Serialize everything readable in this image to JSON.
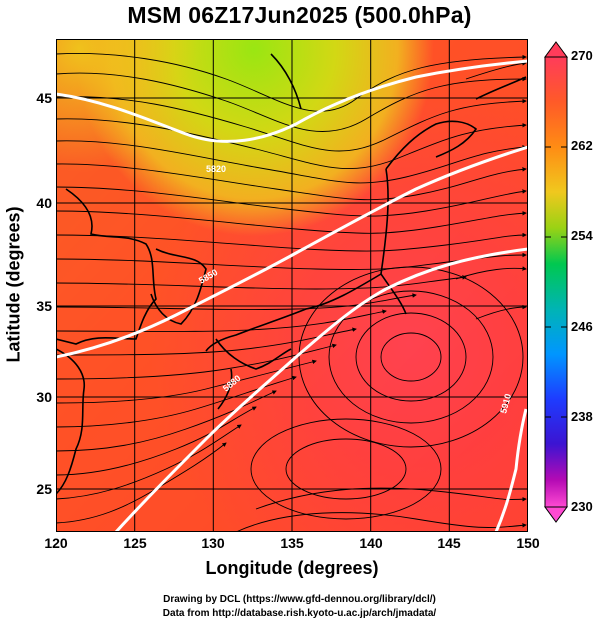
{
  "title": "MSM 06Z17Jun2025 (500.0hPa)",
  "x_axis": {
    "label": "Longitude (degrees)",
    "ticks": [
      "120",
      "125",
      "130",
      "135",
      "140",
      "145",
      "150"
    ]
  },
  "y_axis": {
    "label": "Latitude  (degrees)",
    "ticks": [
      "45",
      "40",
      "35",
      "30",
      "25"
    ]
  },
  "colorbar": {
    "labels": [
      "270",
      "262",
      "254",
      "246",
      "238",
      "230"
    ],
    "colors": [
      "#ff3c5a",
      "#ff5a28",
      "#ff8c14",
      "#ffb41e",
      "#d2d214",
      "#64d20a",
      "#00c85a",
      "#00b4b4",
      "#0096ff",
      "#1e3cff",
      "#3c14d2",
      "#960ab4",
      "#e600c8",
      "#ff4ad2"
    ]
  },
  "contour_labels": [
    "5820",
    "5850",
    "5880",
    "5910"
  ],
  "credits": {
    "line1": "Drawing by DCL (https://www.gfd-dennou.org/library/dcl/)",
    "line2": "Data from http://database.rish.kyoto-u.ac.jp/arch/jmadata/"
  }
}
